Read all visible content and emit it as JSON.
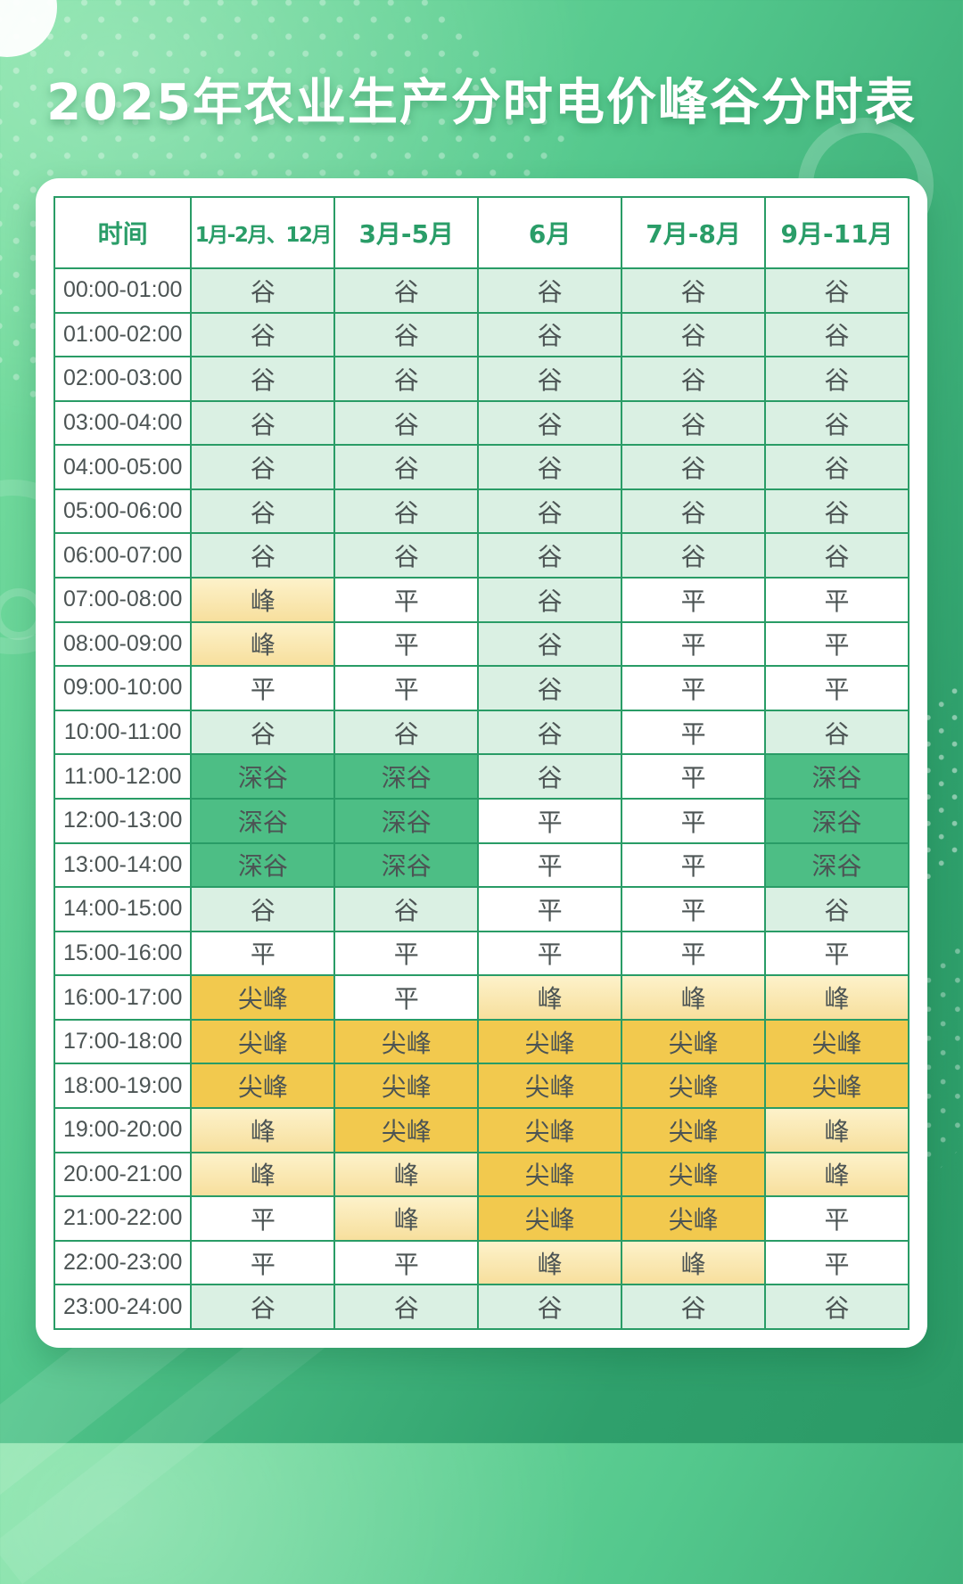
{
  "title": "2025年农业生产分时电价峰谷分时表",
  "table": {
    "headers": [
      "时间",
      "1月-2月、12月",
      "3月-5月",
      "6月",
      "7月-8月",
      "9月-11月"
    ],
    "rows": [
      {
        "time": "00:00-01:00",
        "values": [
          "谷",
          "谷",
          "谷",
          "谷",
          "谷"
        ]
      },
      {
        "time": "01:00-02:00",
        "values": [
          "谷",
          "谷",
          "谷",
          "谷",
          "谷"
        ]
      },
      {
        "time": "02:00-03:00",
        "values": [
          "谷",
          "谷",
          "谷",
          "谷",
          "谷"
        ]
      },
      {
        "time": "03:00-04:00",
        "values": [
          "谷",
          "谷",
          "谷",
          "谷",
          "谷"
        ]
      },
      {
        "time": "04:00-05:00",
        "values": [
          "谷",
          "谷",
          "谷",
          "谷",
          "谷"
        ]
      },
      {
        "time": "05:00-06:00",
        "values": [
          "谷",
          "谷",
          "谷",
          "谷",
          "谷"
        ]
      },
      {
        "time": "06:00-07:00",
        "values": [
          "谷",
          "谷",
          "谷",
          "谷",
          "谷"
        ]
      },
      {
        "time": "07:00-08:00",
        "values": [
          "峰",
          "平",
          "谷",
          "平",
          "平"
        ]
      },
      {
        "time": "08:00-09:00",
        "values": [
          "峰",
          "平",
          "谷",
          "平",
          "平"
        ]
      },
      {
        "time": "09:00-10:00",
        "values": [
          "平",
          "平",
          "谷",
          "平",
          "平"
        ]
      },
      {
        "time": "10:00-11:00",
        "values": [
          "谷",
          "谷",
          "谷",
          "平",
          "谷"
        ]
      },
      {
        "time": "11:00-12:00",
        "values": [
          "深谷",
          "深谷",
          "谷",
          "平",
          "深谷"
        ]
      },
      {
        "time": "12:00-13:00",
        "values": [
          "深谷",
          "深谷",
          "平",
          "平",
          "深谷"
        ]
      },
      {
        "time": "13:00-14:00",
        "values": [
          "深谷",
          "深谷",
          "平",
          "平",
          "深谷"
        ]
      },
      {
        "time": "14:00-15:00",
        "values": [
          "谷",
          "谷",
          "平",
          "平",
          "谷"
        ]
      },
      {
        "time": "15:00-16:00",
        "values": [
          "平",
          "平",
          "平",
          "平",
          "平"
        ]
      },
      {
        "time": "16:00-17:00",
        "values": [
          "尖峰",
          "平",
          "峰",
          "峰",
          "峰"
        ]
      },
      {
        "time": "17:00-18:00",
        "values": [
          "尖峰",
          "尖峰",
          "尖峰",
          "尖峰",
          "尖峰"
        ]
      },
      {
        "time": "18:00-19:00",
        "values": [
          "尖峰",
          "尖峰",
          "尖峰",
          "尖峰",
          "尖峰"
        ]
      },
      {
        "time": "19:00-20:00",
        "values": [
          "峰",
          "尖峰",
          "尖峰",
          "尖峰",
          "峰"
        ]
      },
      {
        "time": "20:00-21:00",
        "values": [
          "峰",
          "峰",
          "尖峰",
          "尖峰",
          "峰"
        ]
      },
      {
        "time": "21:00-22:00",
        "values": [
          "平",
          "峰",
          "尖峰",
          "尖峰",
          "平"
        ]
      },
      {
        "time": "22:00-23:00",
        "values": [
          "平",
          "平",
          "峰",
          "峰",
          "平"
        ]
      },
      {
        "time": "23:00-24:00",
        "values": [
          "谷",
          "谷",
          "谷",
          "谷",
          "谷"
        ]
      }
    ]
  },
  "value_styles": {
    "谷": "valley",
    "平": "flat",
    "峰": "peak",
    "尖峰": "sharp",
    "深谷": "deep"
  },
  "colors": {
    "border_green": "#299c66",
    "header_text": "#2a9d68",
    "cell_text": "#4c5454",
    "valley_bg": "#daf0e3",
    "deep_bg": "#4dbe85",
    "sharp_bg": "#f2c94e",
    "peak_bg_top": "#fdf2ca",
    "peak_bg_bottom": "#f7df9d"
  }
}
